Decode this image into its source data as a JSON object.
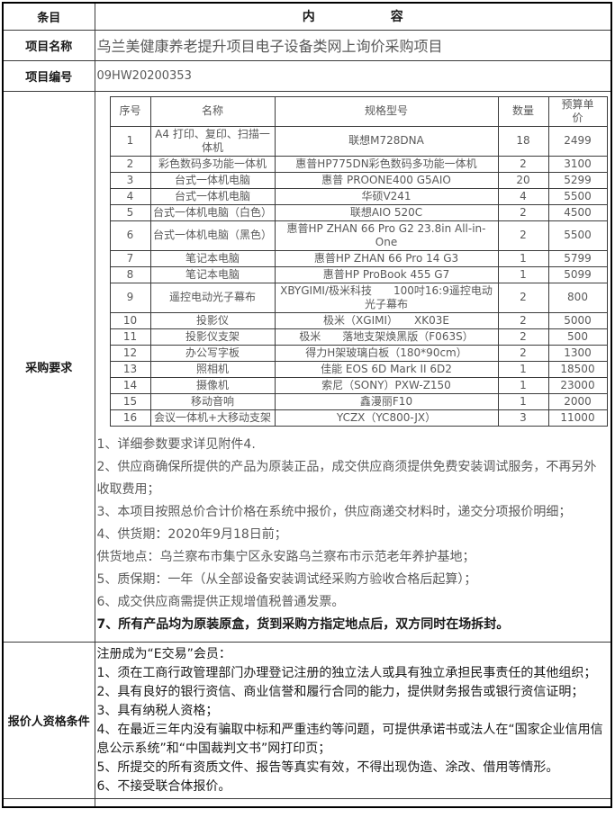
{
  "colors": {
    "border": "#3b3b3b",
    "outer_border": "#000000",
    "text_gray": "#595959",
    "text_black": "#1a1a1a",
    "background": "#ffffff"
  },
  "header": {
    "label": "条目",
    "content": "内　　　　　　容"
  },
  "project_name": {
    "label": "项目名称",
    "value": "乌兰美健康养老提升项目电子设备类网上询价采购项目"
  },
  "project_code": {
    "label": "项目编号",
    "value": "09HW20200353"
  },
  "procurement": {
    "label": "采购要求",
    "table": {
      "columns": [
        "序号",
        "名称",
        "规格型号",
        "数量",
        "预算单价"
      ],
      "rows": [
        [
          "1",
          "A4 打印、复印、扫描一体机",
          "联想M728DNA",
          "18",
          "2499"
        ],
        [
          "2",
          "彩色数码多功能一体机",
          "惠普HP775DN彩色数码多功能一体机",
          "2",
          "3100"
        ],
        [
          "3",
          "台式一体机电脑",
          "惠普  PROONE400 G5AIO",
          "20",
          "5299"
        ],
        [
          "4",
          "台式一体机电脑",
          "华硕V241",
          "4",
          "5500"
        ],
        [
          "5",
          "台式一体机电脑（白色）",
          "联想AIO 520C",
          "2",
          "4500"
        ],
        [
          "6",
          "台式一体机电脑（黑色）",
          "惠普HP ZHAN 66 Pro G2 23.8in All-in-One",
          "2",
          "5500"
        ],
        [
          "7",
          "笔记本电脑",
          "惠普HP ZHAN 66 Pro 14 G3",
          "1",
          "5799"
        ],
        [
          "8",
          "笔记本电脑",
          "惠普HP ProBook 455 G7",
          "1",
          "5099"
        ],
        [
          "9",
          "遥控电动光子幕布",
          "XBYGIMI/极米科技　　100吋16:9遥控电动光子幕布",
          "2",
          "800"
        ],
        [
          "10",
          "投影仪",
          "极米（XGIMI）　　XK03E",
          "2",
          "5000"
        ],
        [
          "11",
          "投影仪支架",
          "极米　　落地支架焕黑版（F063S）",
          "2",
          "500"
        ],
        [
          "12",
          "办公写字板",
          "得力H架玻璃白板（180*90cm）",
          "2",
          "1300"
        ],
        [
          "13",
          "照相机",
          "佳能 EOS 6D Mark II 6D2",
          "1",
          "18500"
        ],
        [
          "14",
          "摄像机",
          "索尼（SONY）PXW-Z150",
          "1",
          "23000"
        ],
        [
          "15",
          "移动音响",
          "鑫漫丽F10",
          "1",
          "2000"
        ],
        [
          "16",
          "会议一体机+大移动支架",
          "YCZX（YC800-JX）",
          "3",
          "11000"
        ]
      ]
    },
    "notes": [
      "1、详细参数要求详见附件4.",
      "2、供应商确保所提供的产品为原装正品，成交供应商须提供免费安装调试服务，不再另外收取费用；",
      "3、本项目按照总价合计价格在系统中报价，供应商递交材料时，递交分项报价明细；",
      "4、供货期：2020年9月18日前；",
      "供货地点：乌兰察布市集宁区永安路乌兰察布市示范老年养护基地；",
      "5、质保期：一年（从全部设备安装调试经采购方验收合格后起算）；",
      "6、成交供应商需提供正规增值税普通发票。",
      "7、所有产品均为原装原盒，货到采购方指定地点后，双方同时在场拆封。"
    ]
  },
  "qualification": {
    "label": "报价人资格条件",
    "lines": [
      "注册成为“E交易”会员：",
      "1、须在工商行政管理部门办理登记注册的独立法人或具有独立承担民事责任的其他组织；",
      "2、具有良好的银行资信、商业信誉和履行合同的能力，提供财务报告或银行资信证明；",
      "3、具有纳税人资格；",
      "4、在最近三年内没有骗取中标和严重违约等问题，可提供承诺书或法人在“国家企业信用信息公示系统”和“中国裁判文书”网打印页；",
      "5、所提交的所有资质文件、报告等真实有效，不得出现伪造、涂改、借用等情形。",
      "6、不接受联合体报价。"
    ]
  }
}
